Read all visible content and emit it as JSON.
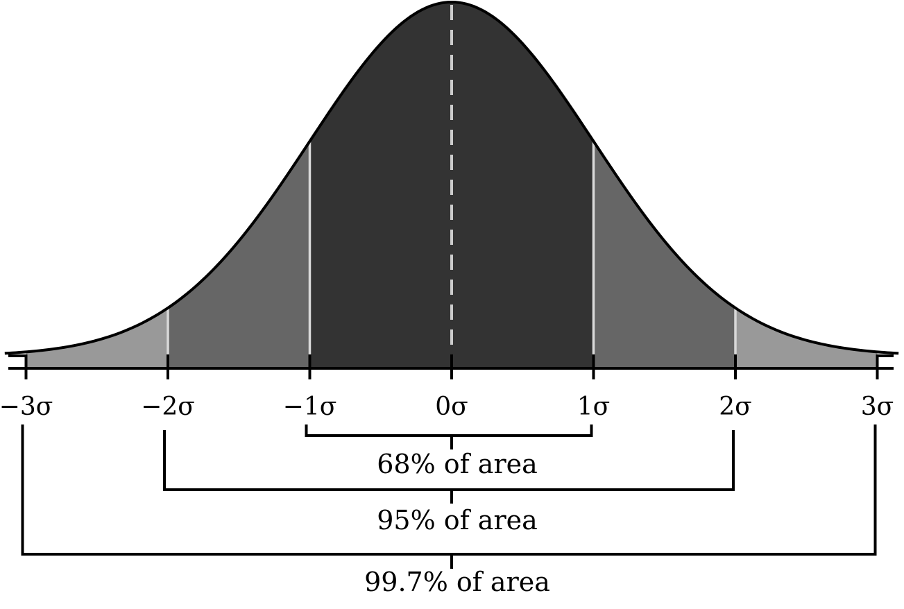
{
  "chart_data": {
    "type": "area",
    "title": "",
    "xlabel": "",
    "ylabel": "",
    "xlim": [
      -3,
      3
    ],
    "curve": "normal density",
    "mean": 0,
    "sd": 1,
    "tick_labels": [
      "−3σ",
      "−2σ",
      "−1σ",
      "0σ",
      "1σ",
      "2σ",
      "3σ"
    ],
    "tick_values": [
      -3,
      -2,
      -1,
      0,
      1,
      2,
      3
    ],
    "bands": [
      {
        "from": -1,
        "to": 1,
        "color": "#333333"
      },
      {
        "from": -2,
        "to": -1,
        "color": "#666666"
      },
      {
        "from": 1,
        "to": 2,
        "color": "#666666"
      },
      {
        "from": -3,
        "to": -2,
        "color": "#999999"
      },
      {
        "from": 2,
        "to": 3,
        "color": "#999999"
      }
    ],
    "annotations": [
      {
        "from": -1,
        "to": 1,
        "label": "68% of area"
      },
      {
        "from": -2,
        "to": 2,
        "label": "95% of area"
      },
      {
        "from": -3,
        "to": 3,
        "label": "99.7% of area"
      }
    ],
    "mean_line": "dashed",
    "grid": false,
    "legend": "none"
  }
}
